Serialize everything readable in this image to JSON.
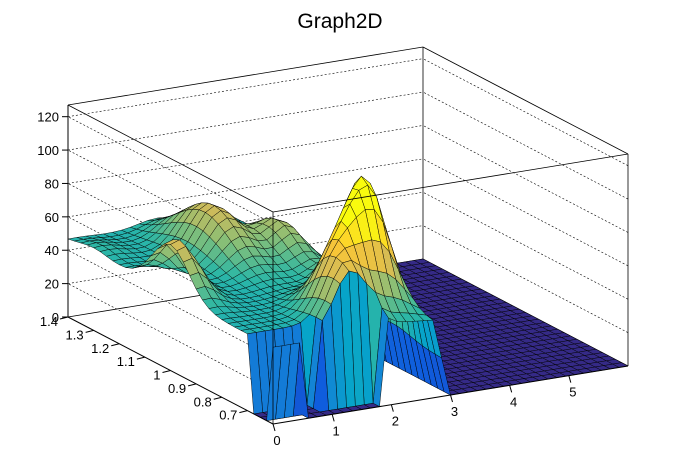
{
  "chart_data": {
    "type": "surface",
    "title": "Graph2D",
    "x_range": [
      0,
      6
    ],
    "y_range": [
      0.6,
      1.4
    ],
    "z_range": [
      0,
      127
    ],
    "x_ticks": [
      "0",
      "1",
      "2",
      "3",
      "4",
      "5"
    ],
    "x_tick_values": [
      0,
      1,
      2,
      3,
      4,
      5
    ],
    "y_ticks": [
      "0.7",
      "0.8",
      "0.9",
      "1",
      "1.1",
      "1.2",
      "1.3",
      "1.4"
    ],
    "y_tick_values": [
      0.7,
      0.8,
      0.9,
      1.0,
      1.1,
      1.2,
      1.3,
      1.4
    ],
    "z_ticks": [
      "0",
      "20",
      "40",
      "60",
      "80",
      "100",
      "120"
    ],
    "z_tick_values": [
      0,
      20,
      40,
      60,
      80,
      100,
      120
    ],
    "z_grid": true,
    "palette": [
      "#352a87",
      "#0f5cdd",
      "#1481d6",
      "#06a4ca",
      "#2eb7a4",
      "#87bf77",
      "#d1bb59",
      "#fec832",
      "#f9fb0e"
    ],
    "peaks": [
      {
        "x": 1.5,
        "y": 0.66,
        "z": 76,
        "width_x": 0.35,
        "width_y": 0.12
      },
      {
        "x": 1.5,
        "y": 1.18,
        "z": 76,
        "width_x": 0.45,
        "width_y": 0.16
      },
      {
        "x": 0.1,
        "y": 1.0,
        "z": 78,
        "width_x": 0.35,
        "width_y": 0.1
      },
      {
        "x": 0.15,
        "y": 1.3,
        "z": 50,
        "width_x": 0.4,
        "width_y": 0.08
      },
      {
        "x": 2.0,
        "y": 0.75,
        "z": 98,
        "width_x": 0.45,
        "width_y": 0.08
      },
      {
        "x": 2.4,
        "y": 0.8,
        "z": 98,
        "width_x": 0.35,
        "width_y": 0.1
      },
      {
        "x": 2.3,
        "y": 1.1,
        "z": 68,
        "width_x": 0.35,
        "width_y": 0.12
      }
    ],
    "baseline": 46,
    "flat_region_x_min": 3.0,
    "empty_regions": [
      {
        "x_min": 0.0,
        "x_max": 1.0,
        "y_min": 0.62,
        "y_max": 0.68
      },
      {
        "x_min": 0.5,
        "x_max": 1.9,
        "y_min": 0.6,
        "y_max": 0.64
      }
    ]
  }
}
